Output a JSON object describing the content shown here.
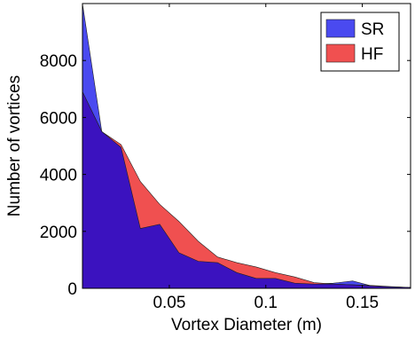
{
  "chart_data": {
    "type": "area",
    "xlabel": "Vortex Diameter (m)",
    "ylabel": "Number of vortices",
    "xlim": [
      0.005,
      0.175
    ],
    "ylim": [
      0,
      10000
    ],
    "x_ticks": [
      0.05,
      0.1,
      0.15
    ],
    "x_tick_labels": [
      "0.05",
      "0.1",
      "0.15"
    ],
    "y_ticks": [
      0,
      2000,
      4000,
      6000,
      8000
    ],
    "y_tick_labels": [
      "0",
      "2000",
      "4000",
      "6000",
      "8000"
    ],
    "grid": false,
    "legend_position": "top-right",
    "series": [
      {
        "name": "SR",
        "color": "#4a4af0",
        "x": [
          0.005,
          0.015,
          0.025,
          0.035,
          0.045,
          0.055,
          0.065,
          0.075,
          0.085,
          0.095,
          0.105,
          0.115,
          0.125,
          0.135,
          0.145,
          0.155,
          0.165,
          0.175
        ],
        "values": [
          10000,
          5500,
          4950,
          2100,
          2250,
          1250,
          950,
          900,
          550,
          350,
          350,
          180,
          150,
          180,
          260,
          80,
          50,
          30
        ]
      },
      {
        "name": "HF",
        "color": "#f05050",
        "x": [
          0.005,
          0.015,
          0.025,
          0.035,
          0.045,
          0.055,
          0.065,
          0.075,
          0.085,
          0.095,
          0.105,
          0.115,
          0.125,
          0.135,
          0.145,
          0.155,
          0.165,
          0.175
        ],
        "values": [
          6900,
          5500,
          5050,
          3750,
          2950,
          2350,
          1650,
          1100,
          900,
          750,
          550,
          400,
          200,
          150,
          120,
          100,
          60,
          30
        ]
      }
    ],
    "overlap_color": "#3b12bf"
  }
}
